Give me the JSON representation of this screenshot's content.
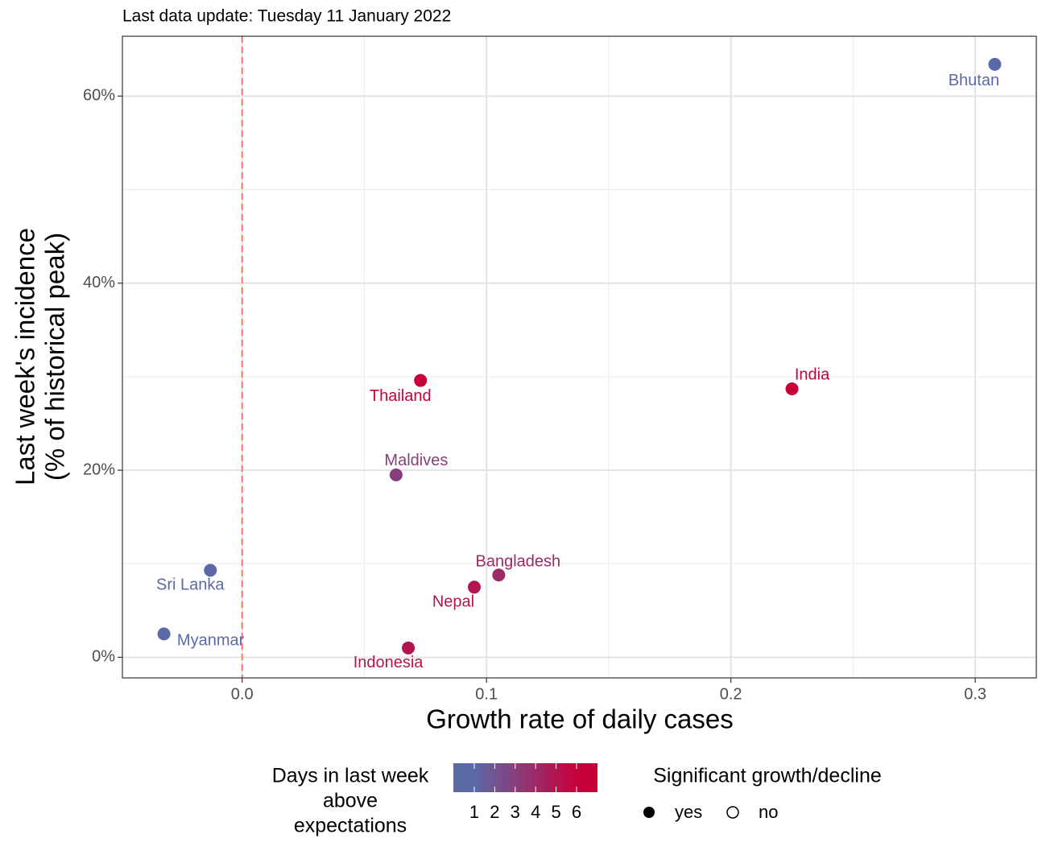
{
  "chart_data": {
    "type": "scatter",
    "subtitle": "Last data update: Tuesday 11 January 2022",
    "xlabel": "Growth rate of daily cases",
    "ylabel": [
      "Last week's incidence",
      "(% of historical peak)"
    ],
    "labels": [
      "Bhutan",
      "India",
      "Thailand",
      "Maldives",
      "Bangladesh",
      "Nepal",
      "Indonesia",
      "Sri Lanka",
      "Myanmar"
    ],
    "x": [
      0.308,
      0.225,
      0.073,
      0.063,
      0.105,
      0.095,
      0.068,
      -0.013,
      -0.032
    ],
    "values": [
      63.4,
      28.7,
      29.6,
      19.5,
      8.8,
      7.5,
      1.0,
      9.3,
      2.5
    ],
    "days": [
      1,
      6,
      6,
      3,
      4,
      5,
      5,
      1,
      1
    ],
    "colors": [
      "#5b69a6",
      "#c8003a"
    ],
    "xlim": [
      -0.049,
      0.325
    ],
    "ylim": [
      -2.2,
      66.4
    ],
    "xticks": [
      {
        "value": 0,
        "label": "0.0"
      },
      0.1,
      0.2,
      0.3
    ],
    "yticks": [
      {
        "value": 0,
        "label": "0%"
      },
      {
        "value": 20,
        "label": "20%"
      },
      {
        "value": 40,
        "label": "40%"
      },
      {
        "value": 60,
        "label": "60%"
      }
    ],
    "grid": true,
    "reference_line": {
      "value": 0,
      "color": "#f8766d"
    },
    "legend": {
      "color_title": [
        "Days in last week",
        "above",
        "expectations"
      ],
      "color_ticks": [
        1,
        2,
        3,
        4,
        5,
        6
      ],
      "shape_title": "Significant growth/decline",
      "shape_labels": [
        "yes",
        "no"
      ]
    }
  }
}
